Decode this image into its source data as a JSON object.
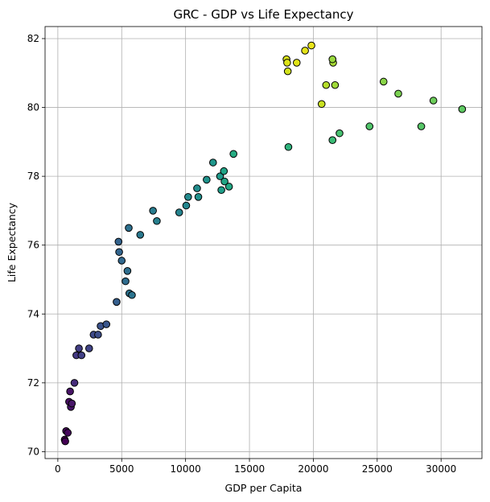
{
  "chart_data": {
    "type": "scatter",
    "title": "GRC - GDP vs Life Expectancy",
    "xlabel": "GDP per Capita",
    "ylabel": "Life Expectancy",
    "xlim": [
      -1000,
      33200
    ],
    "ylim": [
      69.8,
      82.35
    ],
    "xticks": [
      0,
      5000,
      10000,
      15000,
      20000,
      25000,
      30000
    ],
    "yticks": [
      70,
      72,
      74,
      76,
      78,
      80,
      82
    ],
    "grid": true,
    "colormap": "viridis",
    "points": [
      {
        "x": 540,
        "y": 70.35,
        "color": "#440154"
      },
      {
        "x": 580,
        "y": 70.3,
        "color": "#440154"
      },
      {
        "x": 650,
        "y": 70.6,
        "color": "#450559"
      },
      {
        "x": 780,
        "y": 70.55,
        "color": "#46085c"
      },
      {
        "x": 880,
        "y": 71.45,
        "color": "#471063"
      },
      {
        "x": 960,
        "y": 71.75,
        "color": "#481467"
      },
      {
        "x": 1020,
        "y": 71.3,
        "color": "#47126a"
      },
      {
        "x": 1100,
        "y": 71.4,
        "color": "#481769"
      },
      {
        "x": 1300,
        "y": 72.0,
        "color": "#472d7b"
      },
      {
        "x": 1450,
        "y": 72.8,
        "color": "#443983"
      },
      {
        "x": 1650,
        "y": 73.0,
        "color": "#433e85"
      },
      {
        "x": 1850,
        "y": 72.8,
        "color": "#424086"
      },
      {
        "x": 2450,
        "y": 73.0,
        "color": "#414487"
      },
      {
        "x": 2800,
        "y": 73.4,
        "color": "#3e4a89"
      },
      {
        "x": 3150,
        "y": 73.4,
        "color": "#3d4e8a"
      },
      {
        "x": 3350,
        "y": 73.65,
        "color": "#3b528b"
      },
      {
        "x": 3800,
        "y": 73.7,
        "color": "#39568c"
      },
      {
        "x": 4600,
        "y": 74.35,
        "color": "#355f8d"
      },
      {
        "x": 4750,
        "y": 76.1,
        "color": "#33638d"
      },
      {
        "x": 4800,
        "y": 75.8,
        "color": "#32658e"
      },
      {
        "x": 5000,
        "y": 75.55,
        "color": "#31688e"
      },
      {
        "x": 5300,
        "y": 74.95,
        "color": "#2f6c8e"
      },
      {
        "x": 5450,
        "y": 75.25,
        "color": "#2e6e8e"
      },
      {
        "x": 5550,
        "y": 76.5,
        "color": "#2d708e"
      },
      {
        "x": 5600,
        "y": 74.6,
        "color": "#2c728e"
      },
      {
        "x": 5800,
        "y": 74.55,
        "color": "#2b748e"
      },
      {
        "x": 6450,
        "y": 76.3,
        "color": "#2a788e"
      },
      {
        "x": 7450,
        "y": 77.0,
        "color": "#287c8e"
      },
      {
        "x": 7750,
        "y": 76.7,
        "color": "#27808e"
      },
      {
        "x": 9500,
        "y": 76.95,
        "color": "#25838e"
      },
      {
        "x": 10050,
        "y": 77.15,
        "color": "#24868e"
      },
      {
        "x": 10200,
        "y": 77.4,
        "color": "#238a8d"
      },
      {
        "x": 10900,
        "y": 77.65,
        "color": "#228d8d"
      },
      {
        "x": 11000,
        "y": 77.4,
        "color": "#21918c"
      },
      {
        "x": 11650,
        "y": 77.9,
        "color": "#20938c"
      },
      {
        "x": 12150,
        "y": 78.4,
        "color": "#1f968b"
      },
      {
        "x": 12700,
        "y": 78.0,
        "color": "#1f998a"
      },
      {
        "x": 12800,
        "y": 77.6,
        "color": "#1f9e89"
      },
      {
        "x": 13000,
        "y": 78.15,
        "color": "#20a386"
      },
      {
        "x": 13050,
        "y": 77.85,
        "color": "#21a585"
      },
      {
        "x": 13400,
        "y": 77.7,
        "color": "#22a884"
      },
      {
        "x": 13750,
        "y": 78.65,
        "color": "#25ab82"
      },
      {
        "x": 18050,
        "y": 78.85,
        "color": "#2eb37c"
      },
      {
        "x": 21500,
        "y": 79.05,
        "color": "#3bbb75"
      },
      {
        "x": 22050,
        "y": 79.25,
        "color": "#46c06f"
      },
      {
        "x": 24400,
        "y": 79.45,
        "color": "#50c46a"
      },
      {
        "x": 28450,
        "y": 79.45,
        "color": "#56c667"
      },
      {
        "x": 31650,
        "y": 79.95,
        "color": "#5ec962"
      },
      {
        "x": 29400,
        "y": 80.2,
        "color": "#6ccd5a"
      },
      {
        "x": 26650,
        "y": 80.4,
        "color": "#7ad151"
      },
      {
        "x": 25500,
        "y": 80.75,
        "color": "#89d548"
      },
      {
        "x": 21700,
        "y": 80.65,
        "color": "#a0da39"
      },
      {
        "x": 21000,
        "y": 80.65,
        "color": "#b5de2b"
      },
      {
        "x": 20650,
        "y": 80.1,
        "color": "#c8e020"
      },
      {
        "x": 18000,
        "y": 81.05,
        "color": "#d2e21b"
      },
      {
        "x": 17900,
        "y": 81.4,
        "color": "#d8e219"
      },
      {
        "x": 17950,
        "y": 81.3,
        "color": "#dde318"
      },
      {
        "x": 18700,
        "y": 81.3,
        "color": "#e1e418"
      },
      {
        "x": 19350,
        "y": 81.65,
        "color": "#e5e419"
      },
      {
        "x": 19850,
        "y": 81.8,
        "color": "#eae51a"
      },
      {
        "x": 21550,
        "y": 81.3,
        "color": "#a8db34"
      },
      {
        "x": 21500,
        "y": 81.4,
        "color": "#98d83e"
      }
    ]
  }
}
